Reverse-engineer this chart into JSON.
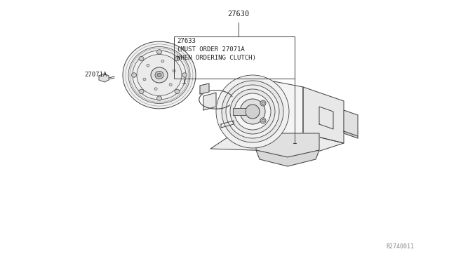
{
  "bg_color": "#ffffff",
  "label_27630": "27630",
  "label_27633": "27633\n(MUST ORDER 27071A\nWHEN ORDERING CLUTCH)",
  "label_27071A": "27071A",
  "ref_code": "R2740011",
  "line_color": "#404040",
  "text_color": "#222222",
  "font_size": 7.0,
  "fig_w": 6.4,
  "fig_h": 3.72,
  "dpi": 100
}
